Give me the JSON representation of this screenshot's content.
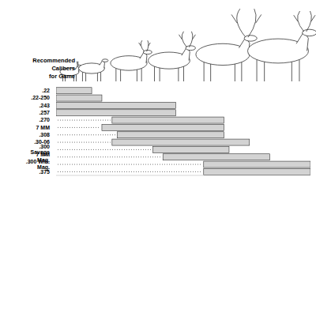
{
  "chart_data": {
    "type": "bar",
    "orientation": "horizontal",
    "title": "Recommended\nCalibers\nfor Game",
    "categories": [
      ".22",
      ".22-250",
      ".243",
      ".257",
      ".270",
      "7 MM",
      ".308",
      ".30-06",
      ".300 Savage",
      "7 MM Mag.",
      ".300 Win. Mag.",
      ".375"
    ],
    "values": [
      [
        0,
        14
      ],
      [
        0,
        18
      ],
      [
        0,
        47
      ],
      [
        0,
        47
      ],
      [
        22,
        66
      ],
      [
        18,
        66
      ],
      [
        24,
        66
      ],
      [
        22,
        76
      ],
      [
        38,
        68
      ],
      [
        42,
        84
      ],
      [
        58,
        100
      ],
      [
        58,
        100
      ]
    ],
    "color": "#d3d3d3",
    "xlim": [
      0,
      100
    ],
    "tick_labels": "y",
    "grid": false
  }
}
